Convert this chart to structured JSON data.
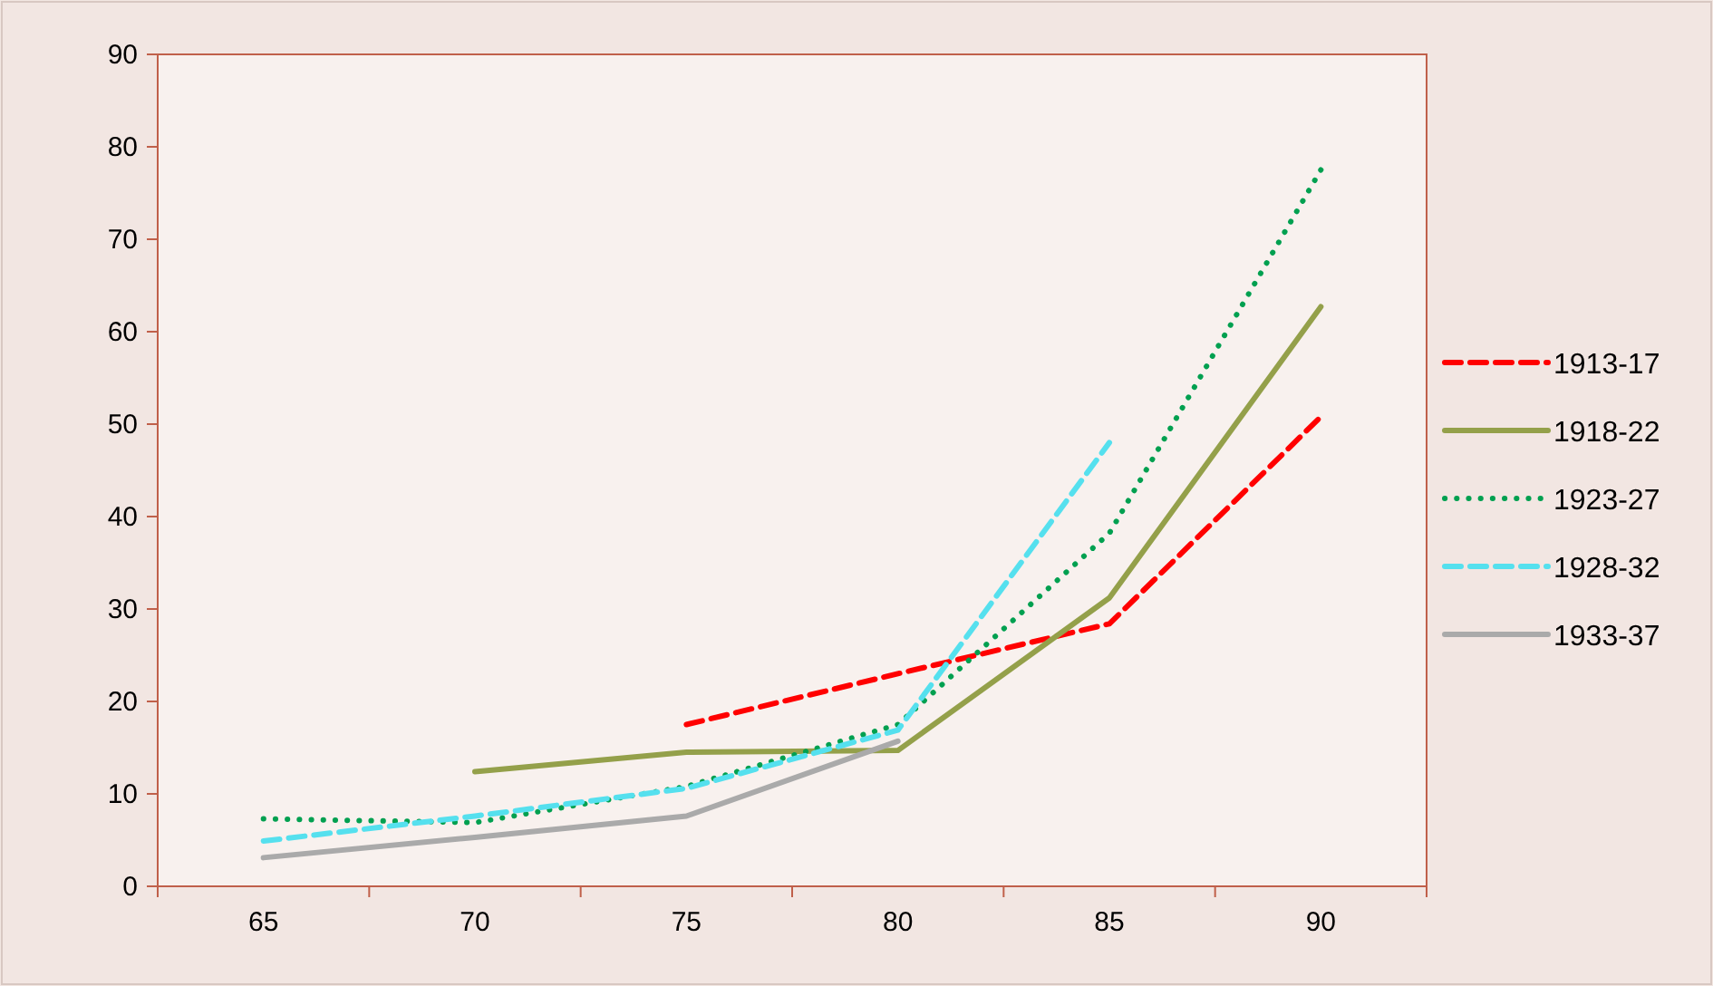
{
  "chart_data": {
    "type": "line",
    "categories": [
      "65",
      "70",
      "75",
      "80",
      "85",
      "90"
    ],
    "ylim": [
      0,
      90
    ],
    "yticks": [
      0,
      10,
      20,
      30,
      40,
      50,
      60,
      70,
      80,
      90
    ],
    "grid": false,
    "legend": "right",
    "marker": "none",
    "series": [
      {
        "name": "1913-17",
        "color": "#ff0000",
        "line_style": "dashed",
        "values": [
          null,
          null,
          17.5,
          23,
          28.4,
          50.8
        ]
      },
      {
        "name": "1918-22",
        "color": "#94a04a",
        "line_style": "solid",
        "values": [
          null,
          12.4,
          14.5,
          14.7,
          31.2,
          62.7
        ]
      },
      {
        "name": "1923-27",
        "color": "#00a050",
        "line_style": "dotted",
        "values": [
          7.3,
          6.9,
          10.8,
          17.5,
          38.2,
          77.5
        ]
      },
      {
        "name": "1928-32",
        "color": "#55e0ee",
        "line_style": "dashed",
        "values": [
          4.9,
          7.6,
          10.6,
          16.9,
          48,
          null
        ]
      },
      {
        "name": "1933-37",
        "color": "#aaaaaa",
        "line_style": "solid",
        "values": [
          3.1,
          5.3,
          7.6,
          15.7,
          null,
          null
        ]
      }
    ]
  }
}
